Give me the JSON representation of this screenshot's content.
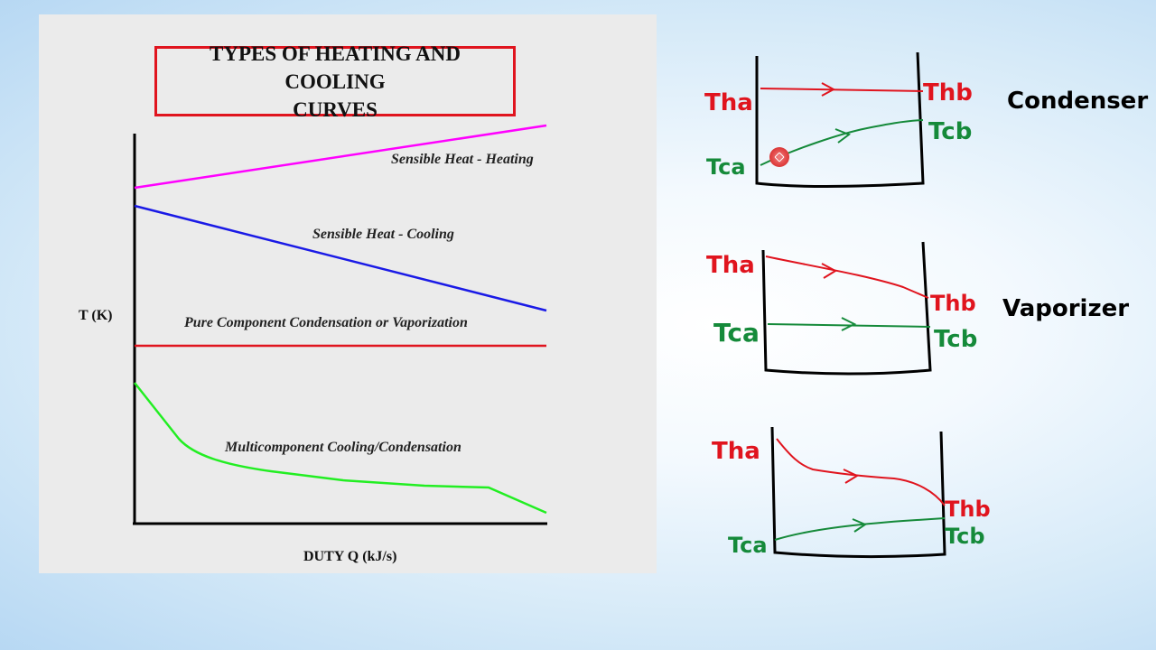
{
  "slide": {
    "title_line1": "TYPES OF HEATING AND COOLING",
    "title_line2": "CURVES",
    "y_axis_label": "T (K)",
    "x_axis_label": "DUTY Q (kJ/s)",
    "curves": [
      {
        "label": "Sensible Heat - Heating",
        "color": "#ff00ff"
      },
      {
        "label": "Sensible Heat - Cooling",
        "color": "#1a1ae6"
      },
      {
        "label": "Pure Component Condensation or Vaporization",
        "color": "#e0141e"
      },
      {
        "label": "Multicomponent Cooling/Condensation",
        "color": "#22ee22"
      }
    ]
  },
  "annotations": {
    "hot_color": "#e0141e",
    "cold_color": "#158a3a",
    "condenser": {
      "name": "Condenser",
      "hot_in": "Tha",
      "hot_out": "Thb",
      "cold_in": "Tca",
      "cold_out": "Tcb"
    },
    "vaporizer": {
      "name": "Vaporizer",
      "hot_in": "Tha",
      "hot_out": "Thb",
      "cold_in": "Tca",
      "cold_out": "Tcb"
    },
    "third": {
      "hot_in": "Tha",
      "hot_out": "Thb",
      "cold_in": "Tca",
      "cold_out": "Tcb"
    }
  }
}
